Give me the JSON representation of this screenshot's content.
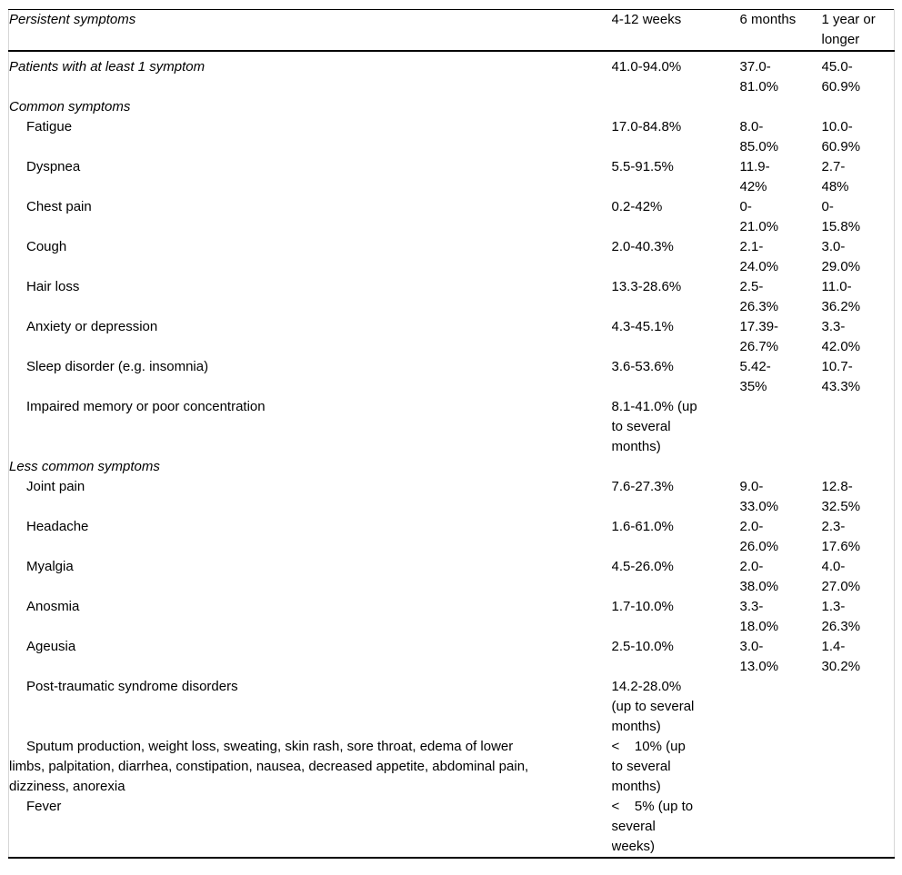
{
  "page": {
    "background_color": "#ffffff",
    "text_color": "#000000",
    "rule_color": "#000000",
    "side_border_color": "#d6d6d6"
  },
  "table": {
    "header": {
      "col1": "Persistent symptoms",
      "col2": "4-12 weeks",
      "col3": "6 months",
      "col4": "1 year or\nlonger"
    },
    "rows": [
      {
        "style": "group",
        "label": "Patients with at least 1 symptom",
        "weeks4_12": "41.0-94.0%",
        "months6": "37.0-\n81.0%",
        "year1": "45.0-\n60.9%"
      },
      {
        "style": "group",
        "label": "Common symptoms",
        "weeks4_12": "",
        "months6": "",
        "year1": ""
      },
      {
        "style": "item",
        "label": "Fatigue",
        "weeks4_12": "17.0-84.8%",
        "months6": "8.0-\n85.0%",
        "year1": "10.0-\n60.9%"
      },
      {
        "style": "item",
        "label": "Dyspnea",
        "weeks4_12": "5.5-91.5%",
        "months6": "11.9-\n42%",
        "year1": "2.7-\n48%"
      },
      {
        "style": "item",
        "label": "Chest pain",
        "weeks4_12": "0.2-42%",
        "months6": "0-\n21.0%",
        "year1": "0-\n15.8%"
      },
      {
        "style": "item",
        "label": "Cough",
        "weeks4_12": "2.0-40.3%",
        "months6": "2.1-\n24.0%",
        "year1": "3.0-\n29.0%"
      },
      {
        "style": "item",
        "label": "Hair loss",
        "weeks4_12": "13.3-28.6%",
        "months6": "2.5-\n26.3%",
        "year1": "11.0-\n36.2%"
      },
      {
        "style": "item",
        "label": "Anxiety or depression",
        "weeks4_12": "4.3-45.1%",
        "months6": "17.39-\n26.7%",
        "year1": "3.3-\n42.0%"
      },
      {
        "style": "item",
        "label": "Sleep disorder (e.g. insomnia)",
        "weeks4_12": "3.6-53.6%",
        "months6": "5.42-\n35%",
        "year1": "10.7-\n43.3%"
      },
      {
        "style": "item",
        "label": "Impaired memory or poor concentration",
        "weeks4_12": "8.1-41.0% (up\nto several\nmonths)",
        "months6": "",
        "year1": ""
      },
      {
        "style": "group",
        "label": "Less common symptoms",
        "weeks4_12": "",
        "months6": "",
        "year1": ""
      },
      {
        "style": "item",
        "label": "Joint pain",
        "weeks4_12": "7.6-27.3%",
        "months6": "9.0-\n33.0%",
        "year1": "12.8-\n32.5%"
      },
      {
        "style": "item",
        "label": "Headache",
        "weeks4_12": "1.6-61.0%",
        "months6": "2.0-\n26.0%",
        "year1": "2.3-\n17.6%"
      },
      {
        "style": "item",
        "label": "Myalgia",
        "weeks4_12": "4.5-26.0%",
        "months6": "2.0-\n38.0%",
        "year1": "4.0-\n27.0%"
      },
      {
        "style": "item",
        "label": "Anosmia",
        "weeks4_12": "1.7-10.0%",
        "months6": "3.3-\n18.0%",
        "year1": "1.3-\n26.3%"
      },
      {
        "style": "item",
        "label": "Ageusia",
        "weeks4_12": "2.5-10.0%",
        "months6": "3.0-\n13.0%",
        "year1": "1.4-\n30.2%"
      },
      {
        "style": "item",
        "label": "Post-traumatic syndrome disorders",
        "weeks4_12": "14.2-28.0%\n(up to several\nmonths)",
        "months6": "",
        "year1": ""
      },
      {
        "style": "item",
        "label": "Sputum production, weight loss, sweating, skin rash, sore throat, edema of lower\nlimbs, palpitation, diarrhea, constipation, nausea, decreased appetite, abdominal pain,\ndizziness, anorexia",
        "weeks4_12": "<    10% (up\nto several\nmonths)",
        "months6": "",
        "year1": ""
      },
      {
        "style": "item",
        "label": "Fever",
        "weeks4_12": "<    5% (up to\nseveral\nweeks)",
        "months6": "",
        "year1": ""
      }
    ]
  }
}
